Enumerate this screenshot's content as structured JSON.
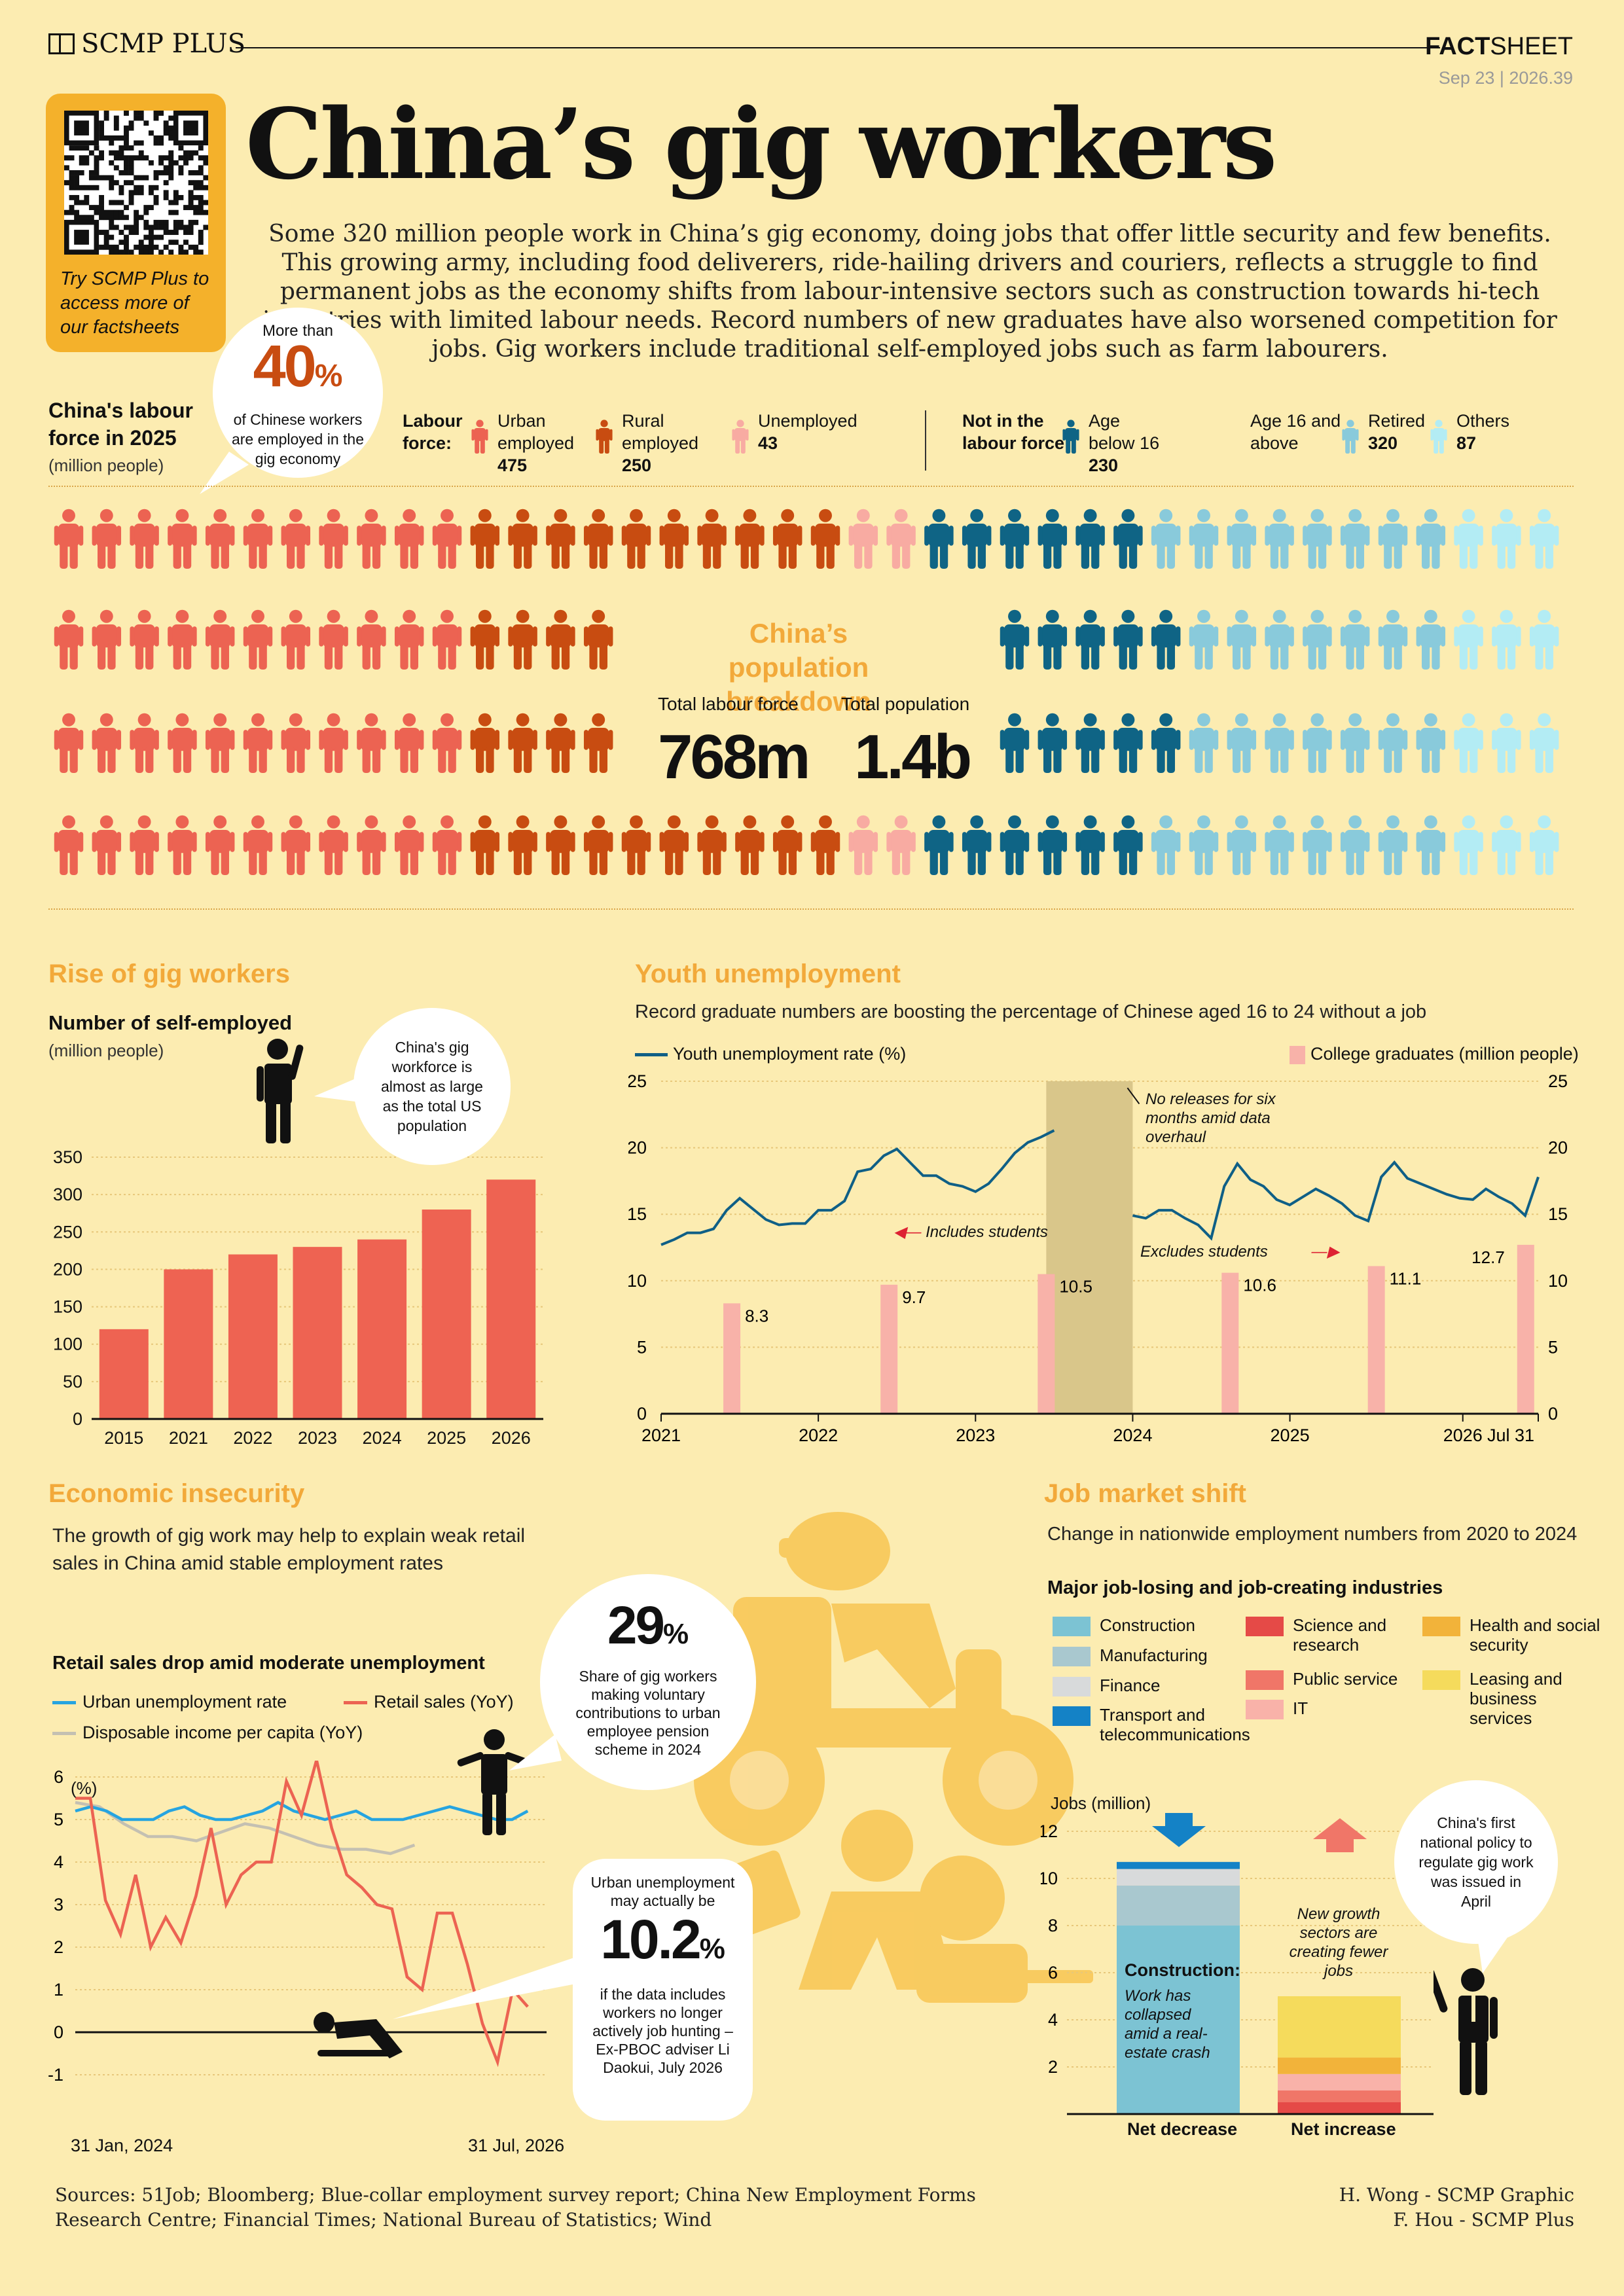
{
  "header": {
    "brand": "SCMP PLUS",
    "factsheet_a": "FACT",
    "factsheet_b": "SHEET",
    "date": "Sep 23 | 2026.39"
  },
  "qr_caption": "Try SCMP Plus to access more of our factsheets",
  "title": "China’s gig workers",
  "intro": "Some 320 million people work in China’s gig economy, doing jobs that offer little security and few benefits. This growing army, including food deliverers, ride-hailing drivers and couriers, reflects a struggle to find permanent jobs as the economy shifts from labour-intensive sectors such as construction towards hi-tech industries with limited labour needs. Record numbers of new graduates have also worsened competition for jobs. Gig workers include traditional self-employed jobs such as farm labourers.",
  "labour": {
    "title": "China's labour force in 2025",
    "unit": "(million people)",
    "callout_pre": "More than",
    "callout_value": "40",
    "callout_pct": "%",
    "callout_text": "of Chinese workers are employed in the gig economy",
    "legend_labour_label": "Labour force:",
    "legend_not_label": "Not in the labour force:",
    "age16_label": "Age 16 and above",
    "categories": [
      {
        "label": "Urban employed",
        "value": "475",
        "color": "#ec6352"
      },
      {
        "label": "Rural employed",
        "value": "250",
        "color": "#c84c11"
      },
      {
        "label": "Unemployed",
        "value": "43",
        "color": "#f8aba2"
      },
      {
        "label": "Age below 16",
        "value": "230",
        "color": "#0f6485"
      },
      {
        "label": "Retired",
        "value": "320",
        "color": "#89cadb"
      },
      {
        "label": "Others",
        "value": "87",
        "color": "#b3ecf4"
      }
    ],
    "center_title": "China’s population breakdown",
    "total_labour_label": "Total labour force",
    "total_labour_value": "768m",
    "total_pop_label": "Total population",
    "total_pop_value": "1.4b"
  },
  "gig": {
    "section_title": "Rise of gig workers",
    "chart_title": "Number of self-employed",
    "unit": "(million people)",
    "bubble": "China's gig workforce is almost as large as the total US population"
  },
  "youth": {
    "section_title": "Youth unemployment",
    "subtitle": "Record graduate numbers are boosting the percentage of Chinese aged 16 to 24 without a job",
    "legend_line": "Youth unemployment rate (%)",
    "legend_bar": "College graduates (million people)",
    "note_gap": "No releases for six months amid data overhaul",
    "note_includes": "Includes students",
    "note_excludes": "Excludes students"
  },
  "econ": {
    "section_title": "Economic insecurity",
    "subtitle": "The growth of gig work may help to explain weak retail sales in China amid stable employment rates",
    "chart_title": "Retail sales drop amid moderate unemployment",
    "legend_unemp": "Urban unemployment rate",
    "legend_retail": "Retail sales (YoY)",
    "legend_income": "Disposable income per capita (YoY)",
    "pct_unit": "(%)",
    "x_start": "31 Jan, 2024",
    "x_end": "31 Jul, 2026",
    "bubble29_value": "29",
    "bubble29_pct": "%",
    "bubble29_text": "Share of gig workers making voluntary contributions to urban employee pension scheme in 2024",
    "bubble10_top": "Urban unemployment may actually be",
    "bubble10_value": "10.2",
    "bubble10_pct": "%",
    "bubble10_text": "if the data includes workers no longer actively job hunting – Ex-PBOC adviser Li Daokui, July 2026"
  },
  "job": {
    "section_title": "Job market shift",
    "subtitle": "Change in nationwide employment numbers from 2020 to 2024",
    "legend_title": "Major job-losing and job-creating industries",
    "legend": [
      {
        "label": "Construction",
        "color": "#7cc3d3"
      },
      {
        "label": "Manufacturing",
        "color": "#a9c8cf"
      },
      {
        "label": "Finance",
        "color": "#d8dadb"
      },
      {
        "label": "Transport and telecommunications",
        "color": "#1482c6"
      },
      {
        "label": "Science and research",
        "color": "#e54a47"
      },
      {
        "label": "Public service",
        "color": "#f07668"
      },
      {
        "label": "IT",
        "color": "#f9b2a9"
      },
      {
        "label": "Health and social security",
        "color": "#f2b33a"
      },
      {
        "label": "Leasing and business services",
        "color": "#f5db5c"
      }
    ],
    "y_label": "Jobs (million)",
    "construction_label": "Construction:",
    "construction_text": "Work has collapsed amid a real-estate crash",
    "new_growth": "New growth sectors are creating fewer jobs",
    "bubble": "China's first national policy to regulate gig work was issued in April",
    "net_decrease": "Net decrease",
    "net_increase": "Net increase"
  },
  "footer": {
    "sources_1": "Sources: 51Job; Bloomberg; Blue-collar employment survey report; China New Employment Forms",
    "sources_2": "Research Centre; Financial Times; National Bureau of Statistics; Wind",
    "credit_1": "H. Wong - SCMP Graphic",
    "credit_2": "F. Hou - SCMP Plus"
  },
  "chart_data": [
    {
      "type": "bar",
      "title": "Number of self-employed",
      "ylabel": "(million people)",
      "categories": [
        "2015",
        "2021",
        "2022",
        "2023",
        "2024",
        "2025",
        "2026"
      ],
      "values": [
        120,
        200,
        220,
        230,
        240,
        280,
        320
      ],
      "ylim": [
        0,
        350
      ],
      "yticks": [
        0,
        50,
        100,
        150,
        200,
        250,
        300,
        350
      ],
      "color": "#ee6352"
    },
    {
      "type": "line",
      "title": "Youth unemployment",
      "x_tick_labels": [
        "2021",
        "2022",
        "2023",
        "2024",
        "2025",
        "2026",
        "Jul 31"
      ],
      "ylim": [
        0,
        25
      ],
      "yticks": [
        0,
        5,
        10,
        15,
        20,
        25
      ],
      "series": [
        {
          "name": "Youth unemployment rate (%)",
          "color": "#0f5f86",
          "segment_1": [
            12.7,
            13.1,
            13.6,
            13.6,
            13.9,
            15.3,
            16.2,
            15.4,
            14.6,
            14.2,
            14.3,
            14.3,
            15.3,
            15.3,
            16.0,
            18.2,
            18.4,
            19.4,
            19.9,
            18.9,
            17.9,
            17.9,
            17.3,
            17.1,
            16.7,
            17.3,
            18.4,
            19.6,
            20.4,
            20.8,
            21.3
          ],
          "segment_2": [
            14.9,
            14.7,
            15.3,
            15.3,
            14.7,
            14.2,
            13.2,
            17.1,
            18.8,
            17.6,
            17.1,
            16.1,
            15.7,
            16.3,
            16.9,
            16.4,
            15.8,
            14.9,
            14.5,
            17.8,
            18.9,
            17.7,
            17.3,
            16.9,
            16.5,
            16.2,
            16.1,
            16.9,
            16.3,
            15.8,
            14.9,
            17.8
          ]
        },
        {
          "name": "College graduates (million people)",
          "type": "bar",
          "color": "#f8b2a9",
          "values": [
            8.3,
            9.7,
            10.5,
            10.6,
            11.1,
            12.7
          ]
        }
      ],
      "bar_labels": [
        "8.3",
        "9.7",
        "10.5",
        "10.6",
        "11.1",
        "12.7"
      ],
      "shaded_gap": "No releases for six months amid data overhaul"
    },
    {
      "type": "line",
      "title": "Retail sales drop amid moderate unemployment",
      "ylim": [
        -1,
        7
      ],
      "yticks": [
        -1,
        0,
        1,
        2,
        3,
        4,
        5,
        6,
        7
      ],
      "x_range": [
        "31 Jan, 2024",
        "31 Jul, 2026"
      ],
      "series": [
        {
          "name": "Urban unemployment rate",
          "color": "#26a4e0",
          "values": [
            5.2,
            5.3,
            5.2,
            5.0,
            5.0,
            5.0,
            5.2,
            5.3,
            5.1,
            5.0,
            5.0,
            5.1,
            5.2,
            5.4,
            5.2,
            5.1,
            5.0,
            5.1,
            5.2,
            5.0,
            5.0,
            5.0,
            5.1,
            5.2,
            5.3,
            5.2,
            5.1,
            5.0,
            5.0,
            5.2
          ]
        },
        {
          "name": "Retail sales (YoY)",
          "color": "#ec6352",
          "values": [
            5.5,
            5.5,
            3.1,
            2.3,
            3.7,
            2.0,
            2.7,
            2.1,
            3.2,
            4.8,
            3.0,
            3.7,
            4.0,
            4.0,
            5.9,
            5.1,
            6.4,
            4.8,
            3.7,
            3.4,
            3.0,
            2.9,
            1.3,
            1.0,
            2.8,
            2.8,
            1.6,
            0.2,
            -0.7,
            1.0,
            0.6
          ]
        },
        {
          "name": "Disposable income per capita (YoY)",
          "color": "#c4c0b2",
          "values": [
            5.4,
            5.3,
            4.9,
            4.6,
            4.6,
            4.5,
            4.7,
            4.9,
            4.8,
            4.6,
            4.4,
            4.3,
            4.3,
            4.2,
            4.4
          ]
        }
      ]
    },
    {
      "type": "bar",
      "title": "Job market shift",
      "ylabel": "Jobs (million)",
      "categories": [
        "Net decrease",
        "Net increase"
      ],
      "ylim": [
        0,
        12
      ],
      "yticks": [
        2,
        4,
        6,
        8,
        10,
        12
      ],
      "series": [
        {
          "name": "Net decrease",
          "stack": [
            {
              "label": "Construction",
              "value": 8.0
            },
            {
              "label": "Manufacturing",
              "value": 1.7
            },
            {
              "label": "Finance",
              "value": 0.7
            },
            {
              "label": "Transport and telecommunications",
              "value": 0.3
            }
          ]
        },
        {
          "name": "Net increase",
          "stack": [
            {
              "label": "Science and research",
              "value": 0.5
            },
            {
              "label": "Public service",
              "value": 0.5
            },
            {
              "label": "IT",
              "value": 0.7
            },
            {
              "label": "Health and social security",
              "value": 0.7
            },
            {
              "label": "Leasing and business services",
              "value": 2.6
            }
          ]
        }
      ]
    }
  ]
}
